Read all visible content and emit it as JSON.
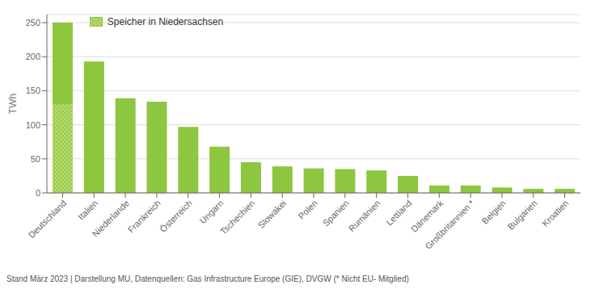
{
  "chart_data": {
    "type": "bar",
    "categories": [
      "Deutschland",
      "Italien",
      "Niederlande",
      "Frankreich",
      "Österreich",
      "Ungarn",
      "Tschechien",
      "Slowakei",
      "Polen",
      "Spanien",
      "Rumänien",
      "Lettland",
      "Dänemark",
      "Großbritannien *",
      "Belgien",
      "Bulgarien",
      "Kroatien"
    ],
    "values": [
      250,
      193,
      139,
      134,
      97,
      68,
      45,
      39,
      36,
      35,
      33,
      25,
      11,
      11,
      8,
      6,
      6
    ],
    "color": "#8dc63f",
    "ylabel": "TWh",
    "ylim": [
      0,
      262
    ],
    "yticks": [
      0,
      50,
      100,
      150,
      200,
      250
    ],
    "grid": true,
    "legend": "upper left",
    "overlay": {
      "name": "Speicher in Niedersachsen",
      "values": [
        130,
        null,
        null,
        null,
        null,
        null,
        null,
        null,
        null,
        null,
        null,
        null,
        null,
        null,
        null,
        null,
        null
      ],
      "color": "#b5d96e"
    },
    "footnote": "Stand März 2023 | Darstellung MU, Datenquellen: Gas Infrastructure Europe (GIE), DVGW (* Nicht EU- Mitglied)"
  }
}
